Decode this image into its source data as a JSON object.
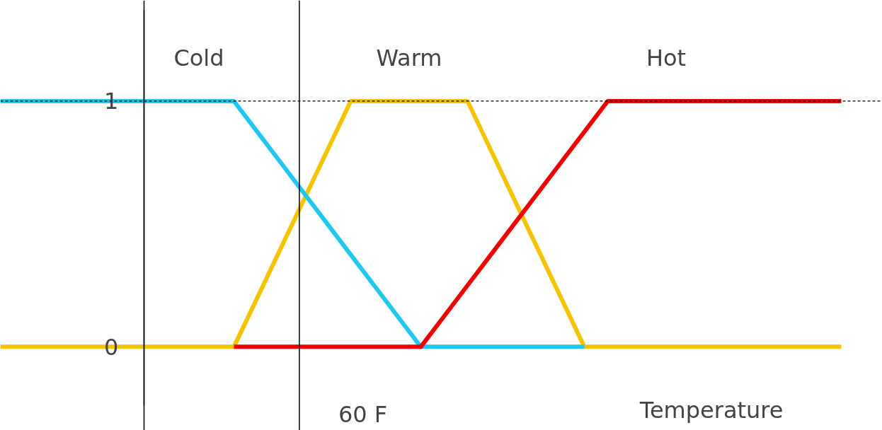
{
  "chart_data": {
    "type": "line",
    "xlabel": "Temperature",
    "categories": [
      null,
      null,
      null,
      null,
      null,
      null,
      null,
      null,
      null,
      null,
      null,
      null,
      null,
      null,
      null,
      null,
      null,
      null,
      null,
      null,
      null,
      null,
      null,
      null,
      null,
      null,
      null,
      null,
      null,
      null,
      null,
      null,
      null,
      null,
      null,
      null,
      null
    ],
    "ylim": [
      -0.34,
      1.41
    ],
    "yticks": [
      0,
      1
    ],
    "tick_labels": "y",
    "grid": false,
    "marker": "none",
    "line_style": "solid",
    "series": [
      {
        "name": "Warm",
        "color": "#f5c400",
        "values": [
          0,
          0,
          0,
          0,
          0,
          0,
          0,
          0,
          0,
          0,
          0,
          0.2,
          0.4,
          0.6,
          0.8,
          1,
          1,
          1,
          1,
          1,
          1,
          0.8,
          0.6,
          0.4,
          0.2,
          0,
          0,
          0,
          0,
          0,
          0,
          0,
          0,
          0,
          0,
          0,
          0
        ]
      },
      {
        "name": "Cold",
        "color": "#1ec8f0",
        "values": [
          1,
          1,
          1,
          1,
          1,
          1,
          1,
          1,
          1,
          1,
          1,
          0.875,
          0.75,
          0.625,
          0.5,
          0.375,
          0.25,
          0.125,
          0,
          0,
          0,
          0,
          0,
          0,
          0,
          0,
          null,
          null,
          null,
          null,
          null,
          null,
          null,
          null,
          null,
          null,
          null
        ]
      },
      {
        "name": "Hot",
        "color": "#f00000",
        "values": [
          null,
          null,
          null,
          null,
          null,
          null,
          null,
          null,
          null,
          null,
          0,
          0,
          0,
          0,
          0,
          0,
          0,
          0,
          0,
          0.125,
          0.25,
          0.375,
          0.5,
          0.625,
          0.75,
          0.875,
          1,
          1,
          1,
          1,
          1,
          1,
          1,
          1,
          1,
          1,
          1
        ]
      }
    ],
    "ref_lines": [
      {
        "axis": "y",
        "value": 1,
        "color": "#000000",
        "line_style": "dashed"
      }
    ],
    "annotations": [
      "60 F"
    ]
  }
}
